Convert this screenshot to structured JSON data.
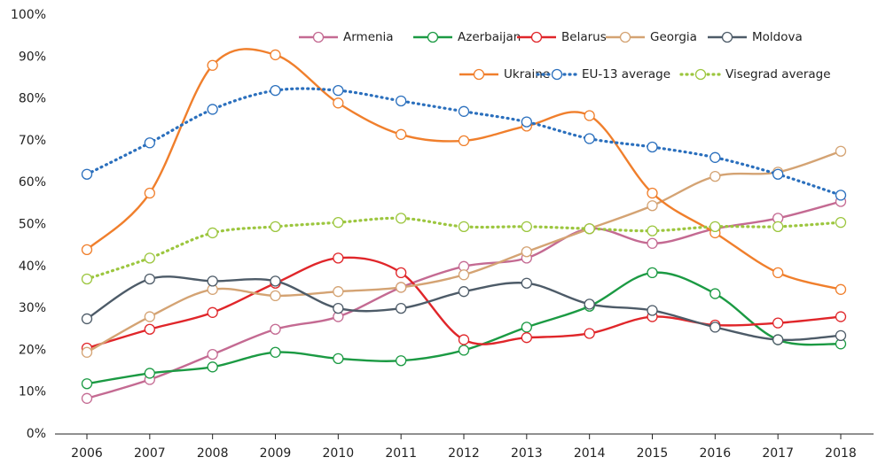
{
  "chart_data": {
    "type": "line",
    "categories": [
      "2006",
      "2007",
      "2008",
      "2009",
      "2010",
      "2011",
      "2012",
      "2013",
      "2014",
      "2015",
      "2016",
      "2017",
      "2018"
    ],
    "ylim": [
      0,
      100
    ],
    "yticks": [
      {
        "value": 0,
        "label": "0%"
      },
      {
        "value": 10,
        "label": "10%"
      },
      {
        "value": 20,
        "label": "20%"
      },
      {
        "value": 30,
        "label": "30%"
      },
      {
        "value": 40,
        "label": "40%"
      },
      {
        "value": 50,
        "label": "50%"
      },
      {
        "value": 60,
        "label": "60%"
      },
      {
        "value": 70,
        "label": "70%"
      },
      {
        "value": 80,
        "label": "80%"
      },
      {
        "value": 90,
        "label": "90%"
      },
      {
        "value": 100,
        "label": "100%"
      }
    ],
    "grid": false,
    "legend": "top-right",
    "series": [
      {
        "name": "Armenia",
        "color": "#c46a92",
        "style": "solid",
        "values": [
          8.5,
          13,
          19,
          25,
          28,
          35,
          40,
          42,
          49,
          45.5,
          49,
          51.5,
          55.5
        ]
      },
      {
        "name": "Azerbaijan",
        "color": "#1b9a43",
        "style": "solid",
        "values": [
          12,
          14.5,
          16,
          19.5,
          18,
          17.5,
          20,
          25.5,
          30.5,
          38.5,
          33.5,
          22.5,
          21.5
        ]
      },
      {
        "name": "Belarus",
        "color": "#e0262a",
        "style": "solid",
        "values": [
          20.5,
          25,
          29,
          36,
          42,
          38.5,
          22.5,
          23,
          24,
          28,
          26,
          26.5,
          28
        ]
      },
      {
        "name": "Georgia",
        "color": "#d4a373",
        "style": "solid",
        "values": [
          19.5,
          28,
          34.5,
          33,
          34,
          35,
          38,
          43.5,
          49,
          54.5,
          61.5,
          62.5,
          67.5
        ]
      },
      {
        "name": "Moldova",
        "color": "#4d5b68",
        "style": "solid",
        "values": [
          27.5,
          37,
          36.5,
          36.5,
          30,
          30,
          34,
          36,
          31,
          29.5,
          25.5,
          22.5,
          23.5
        ]
      },
      {
        "name": "Ukraine",
        "color": "#f07f2c",
        "style": "solid",
        "values": [
          44,
          57.5,
          88,
          90.5,
          79,
          71.5,
          70,
          73.5,
          76,
          57.5,
          48,
          38.5,
          34.5
        ]
      },
      {
        "name": "EU-13 average",
        "color": "#2a6fbd",
        "style": "dotted",
        "values": [
          62,
          69.5,
          77.5,
          82,
          82,
          79.5,
          77,
          74.5,
          70.5,
          68.5,
          66,
          62,
          57
        ]
      },
      {
        "name": "Visegrad average",
        "color": "#9cc63e",
        "style": "dotted",
        "values": [
          37,
          42,
          48,
          49.5,
          50.5,
          51.5,
          49.5,
          49.5,
          49,
          48.5,
          49.5,
          49.5,
          50.5
        ]
      }
    ]
  }
}
